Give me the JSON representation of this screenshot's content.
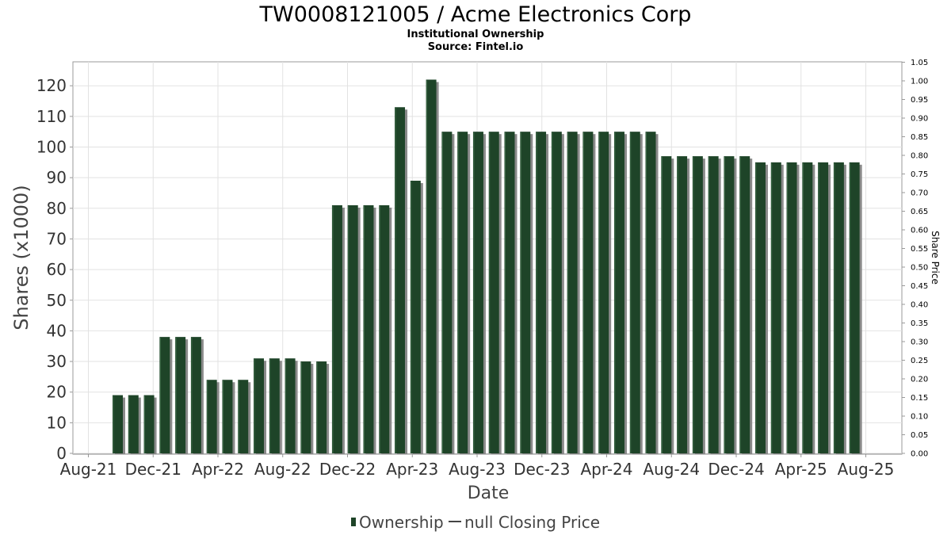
{
  "chart_data": {
    "type": "bar",
    "title": "TW0008121005 / Acme Electronics Corp",
    "subtitle_lines": [
      "Institutional Ownership",
      "Source: Fintel.io"
    ],
    "xlabel": "Date",
    "ylabel": "Shares (x1000)",
    "y2label": "Share Price",
    "ylim": [
      0,
      128
    ],
    "y_ticks": [
      0,
      10,
      20,
      30,
      40,
      50,
      60,
      70,
      80,
      90,
      100,
      110,
      120
    ],
    "y2lim": [
      0,
      1.05
    ],
    "y2_ticks": [
      "0.00",
      "0.05",
      "0.10",
      "0.15",
      "0.20",
      "0.25",
      "0.30",
      "0.35",
      "0.40",
      "0.45",
      "0.50",
      "0.55",
      "0.60",
      "0.65",
      "0.70",
      "0.75",
      "0.80",
      "0.85",
      "0.90",
      "0.95",
      "1.00",
      "1.05"
    ],
    "x_tick_labels": [
      "Aug-21",
      "Dec-21",
      "Apr-22",
      "Aug-22",
      "Dec-22",
      "Apr-23",
      "Aug-23",
      "Dec-23",
      "Apr-24",
      "Aug-24",
      "Dec-24",
      "Apr-25",
      "Aug-25"
    ],
    "categories": [
      "2021-10",
      "2021-11",
      "2021-12",
      "2022-01",
      "2022-02",
      "2022-03",
      "2022-04",
      "2022-05",
      "2022-06",
      "2022-07",
      "2022-08",
      "2022-09",
      "2022-10",
      "2022-11",
      "2022-12",
      "2023-01",
      "2023-02",
      "2023-03",
      "2023-04",
      "2023-05",
      "2023-06",
      "2023-07",
      "2023-08",
      "2023-09",
      "2023-10",
      "2023-11",
      "2023-12",
      "2024-01",
      "2024-02",
      "2024-03",
      "2024-04",
      "2024-05",
      "2024-06",
      "2024-07",
      "2024-08",
      "2024-09",
      "2024-10",
      "2024-11",
      "2024-12",
      "2025-01",
      "2025-02",
      "2025-03",
      "2025-04",
      "2025-05",
      "2025-06",
      "2025-07",
      "2025-08",
      "2025-09"
    ],
    "series": [
      {
        "name": "Ownership",
        "color": "#1e4428",
        "values": [
          19,
          19,
          19,
          38,
          38,
          38,
          24,
          24,
          24,
          31,
          31,
          31,
          30,
          30,
          81,
          81,
          81,
          81,
          113,
          89,
          122,
          105,
          105,
          105,
          105,
          105,
          105,
          105,
          105,
          105,
          105,
          105,
          105,
          105,
          105,
          97,
          97,
          97,
          97,
          97,
          97,
          95,
          95,
          95,
          95,
          95,
          95,
          95
        ]
      }
    ],
    "legend": {
      "position": "bottom",
      "items": [
        {
          "label": "Ownership",
          "marker": "bar",
          "color": "#1e4428"
        },
        {
          "label": "null Closing Price",
          "marker": "line",
          "color": "#444444"
        }
      ]
    },
    "grid": true
  }
}
